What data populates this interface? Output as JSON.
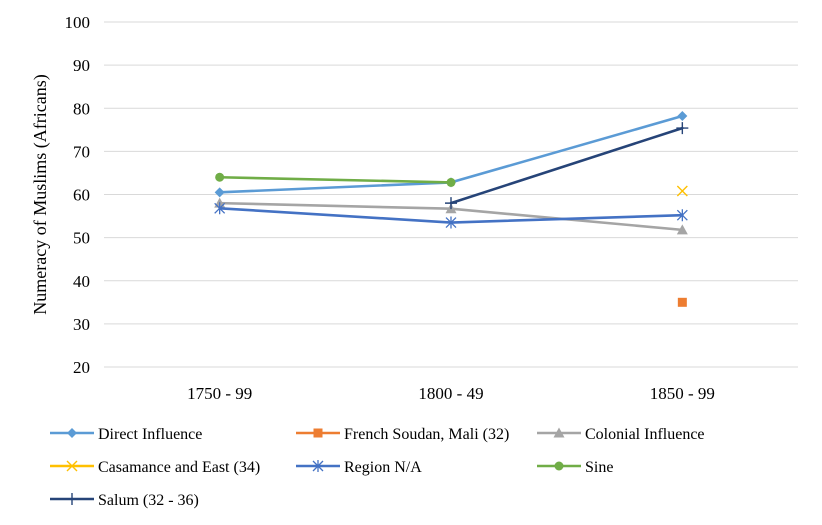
{
  "chart_data": {
    "type": "line",
    "categories": [
      "1750 - 99",
      "1800 - 49",
      "1850 - 99"
    ],
    "ylabel": "Numeracy of Muslims (Africans)",
    "ylim": [
      20,
      100
    ],
    "yticks": [
      20,
      30,
      40,
      50,
      60,
      70,
      80,
      90,
      100
    ],
    "grid": true,
    "legend_position": "bottom",
    "series": [
      {
        "name": "Direct Influence",
        "values": [
          60.5,
          62.8,
          78.2
        ],
        "color": "#5B9BD5",
        "marker": "diamond"
      },
      {
        "name": "French Soudan, Mali (32)",
        "values": [
          null,
          null,
          35.0
        ],
        "color": "#ED7D31",
        "marker": "square"
      },
      {
        "name": "Colonial Influence",
        "values": [
          58.0,
          56.7,
          51.8
        ],
        "color": "#A5A5A5",
        "marker": "triangle"
      },
      {
        "name": "Casamance and East (34)",
        "values": [
          null,
          null,
          60.8
        ],
        "color": "#FFC000",
        "marker": "x"
      },
      {
        "name": "Region N/A",
        "values": [
          56.8,
          53.5,
          55.2
        ],
        "color": "#4472C4",
        "marker": "star"
      },
      {
        "name": "Sine",
        "values": [
          64.0,
          62.8,
          null
        ],
        "color": "#70AD47",
        "marker": "circle"
      },
      {
        "name": "Salum (32 - 36)",
        "values": [
          null,
          58.0,
          75.4
        ],
        "color": "#264478",
        "marker": "plus"
      }
    ]
  }
}
